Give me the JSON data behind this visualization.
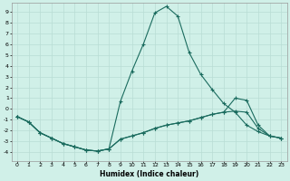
{
  "xlabel": "Humidex (Indice chaleur)",
  "background_color": "#d0f0e8",
  "grid_color": "#b8ddd4",
  "line_color": "#1a6b5e",
  "xlim": [
    -0.5,
    23.5
  ],
  "ylim": [
    -4.8,
    9.8
  ],
  "xticks": [
    0,
    1,
    2,
    3,
    4,
    5,
    6,
    7,
    8,
    9,
    10,
    11,
    12,
    13,
    14,
    15,
    16,
    17,
    18,
    19,
    20,
    21,
    22,
    23
  ],
  "yticks": [
    -4,
    -3,
    -2,
    -1,
    0,
    1,
    2,
    3,
    4,
    5,
    6,
    7,
    8,
    9
  ],
  "series": [
    {
      "x": [
        0,
        1,
        2,
        3,
        4,
        5,
        6,
        7,
        8,
        9,
        10,
        11,
        12,
        13,
        14,
        15,
        16,
        17,
        18,
        19,
        20,
        21,
        22,
        23
      ],
      "y": [
        -0.7,
        -1.2,
        -2.2,
        -2.7,
        -3.2,
        -3.5,
        -3.8,
        -3.9,
        -3.7,
        0.7,
        3.5,
        6.0,
        8.9,
        9.5,
        8.6,
        5.2,
        3.2,
        1.8,
        0.5,
        -0.3,
        -1.5,
        -2.1,
        -2.5,
        -2.7
      ]
    },
    {
      "x": [
        0,
        1,
        2,
        3,
        4,
        5,
        6,
        7,
        8,
        9,
        10,
        11,
        12,
        13,
        14,
        15,
        16,
        17,
        18,
        19,
        20,
        21,
        22,
        23
      ],
      "y": [
        -0.7,
        -1.2,
        -2.2,
        -2.7,
        -3.2,
        -3.5,
        -3.8,
        -3.9,
        -3.7,
        -2.8,
        -2.5,
        -2.2,
        -1.8,
        -1.5,
        -1.3,
        -1.1,
        -0.8,
        -0.5,
        -0.3,
        1.0,
        0.8,
        -1.5,
        -2.5,
        -2.7
      ]
    },
    {
      "x": [
        0,
        1,
        2,
        3,
        4,
        5,
        6,
        7,
        8,
        9,
        10,
        11,
        12,
        13,
        14,
        15,
        16,
        17,
        18,
        19,
        20,
        21,
        22,
        23
      ],
      "y": [
        -0.7,
        -1.2,
        -2.2,
        -2.7,
        -3.2,
        -3.5,
        -3.8,
        -3.9,
        -3.7,
        -2.8,
        -2.5,
        -2.2,
        -1.8,
        -1.5,
        -1.3,
        -1.1,
        -0.8,
        -0.5,
        -0.3,
        -0.2,
        -0.3,
        -1.8,
        -2.5,
        -2.7
      ]
    }
  ]
}
